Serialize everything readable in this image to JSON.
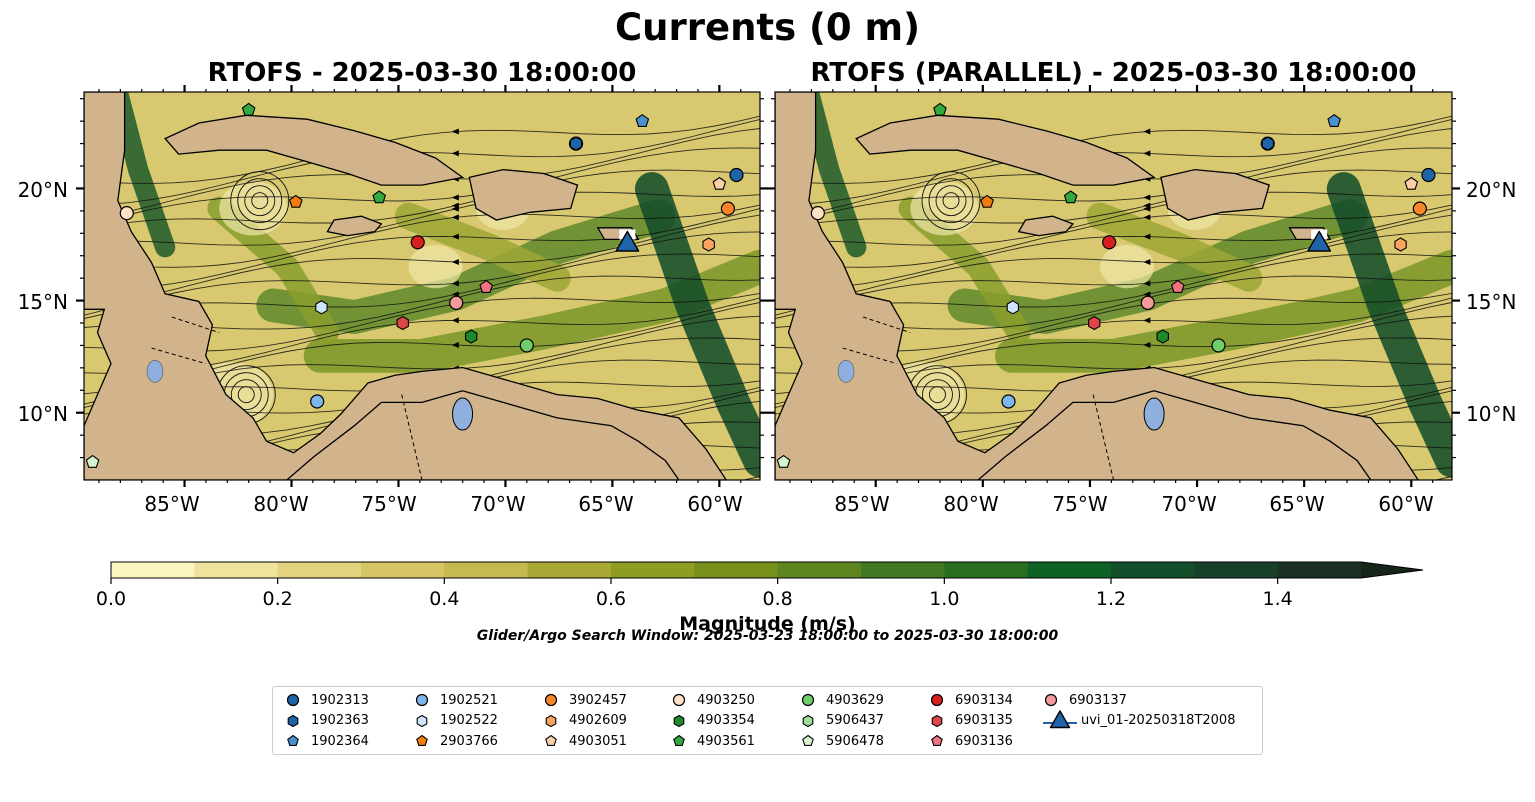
{
  "title": "Currents (0 m)",
  "panels": [
    {
      "title": "RTOFS - 2025-03-30 18:00:00"
    },
    {
      "title": "RTOFS (PARALLEL) - 2025-03-30 18:00:00"
    }
  ],
  "axes": {
    "lat_ticks": [
      "10°N",
      "15°N",
      "20°N"
    ],
    "lon_ticks": [
      "85°W",
      "80°W",
      "75°W",
      "70°W",
      "65°W",
      "60°W"
    ],
    "lat_range": [
      7.0,
      24.3
    ],
    "lon_range": [
      -89.7,
      -58.1
    ]
  },
  "colorbar": {
    "label": "Magnitude (m/s)",
    "ticks": [
      "0.0",
      "0.2",
      "0.4",
      "0.6",
      "0.8",
      "1.0",
      "1.2",
      "1.4"
    ],
    "range": [
      0.0,
      1.5
    ],
    "extend": "max",
    "colors": [
      "#fbf5c0",
      "#efe29c",
      "#e3d27e",
      "#d5c566",
      "#c6b94f",
      "#a8a834",
      "#8f9c22",
      "#77901b",
      "#5f8520",
      "#427a23",
      "#287020",
      "#0e6226",
      "#11502a",
      "#17402b",
      "#1b3024",
      "#15251a"
    ]
  },
  "search_window": "Glider/Argo Search Window: 2025-03-23 18:00:00 to 2025-03-30 18:00:00",
  "legend": {
    "location": "below",
    "items": [
      {
        "label": "1902313",
        "marker": "circle",
        "color": "#1f63a8"
      },
      {
        "label": "1902363",
        "marker": "hexagon",
        "color": "#1f63a8"
      },
      {
        "label": "1902364",
        "marker": "pentagon",
        "color": "#4a90d0"
      },
      {
        "label": "1902521",
        "marker": "circle",
        "color": "#7db7ea"
      },
      {
        "label": "1902522",
        "marker": "hexagon",
        "color": "#cde6fb"
      },
      {
        "label": "2903766",
        "marker": "pentagon",
        "color": "#f07d10"
      },
      {
        "label": "3902457",
        "marker": "circle",
        "color": "#f7862a"
      },
      {
        "label": "4902609",
        "marker": "hexagon",
        "color": "#f9a560"
      },
      {
        "label": "4903051",
        "marker": "pentagon",
        "color": "#fcd0a8"
      },
      {
        "label": "4903250",
        "marker": "circle",
        "color": "#fde2c8"
      },
      {
        "label": "4903354",
        "marker": "hexagon",
        "color": "#1e8a2a"
      },
      {
        "label": "4903561",
        "marker": "pentagon",
        "color": "#33a83e"
      },
      {
        "label": "4903629",
        "marker": "circle",
        "color": "#6fce6a"
      },
      {
        "label": "5906437",
        "marker": "hexagon",
        "color": "#9ddf94"
      },
      {
        "label": "5906478",
        "marker": "pentagon",
        "color": "#d6f5cf"
      },
      {
        "label": "6903134",
        "marker": "circle",
        "color": "#d61f1f"
      },
      {
        "label": "6903135",
        "marker": "hexagon",
        "color": "#e0454a"
      },
      {
        "label": "6903136",
        "marker": "pentagon",
        "color": "#f07480"
      },
      {
        "label": "6903137",
        "marker": "circle",
        "color": "#f59a9a"
      },
      {
        "label": "uvi_01-20250318T2008",
        "marker": "triangle",
        "color": "#1f63a8"
      }
    ]
  },
  "floats": [
    {
      "id": "1902313",
      "lon": -66.7,
      "lat": 22.0
    },
    {
      "id": "1902313",
      "lon": -59.2,
      "lat": 20.6
    },
    {
      "id": "1902363",
      "lon": -66.7,
      "lat": 22.0
    },
    {
      "id": "1902364",
      "lon": -63.6,
      "lat": 23.0
    },
    {
      "id": "1902521",
      "lon": -78.8,
      "lat": 10.5
    },
    {
      "id": "1902522",
      "lon": -78.6,
      "lat": 14.7
    },
    {
      "id": "2903766",
      "lon": -79.8,
      "lat": 19.4
    },
    {
      "id": "3902457",
      "lon": -59.6,
      "lat": 19.1
    },
    {
      "id": "4902609",
      "lon": -60.5,
      "lat": 17.5
    },
    {
      "id": "4903051",
      "lon": -60.0,
      "lat": 20.2
    },
    {
      "id": "4903250",
      "lon": -87.7,
      "lat": 18.9
    },
    {
      "id": "4903354",
      "lon": -71.6,
      "lat": 13.4
    },
    {
      "id": "4903561",
      "lon": -82.0,
      "lat": 23.5
    },
    {
      "id": "4903561",
      "lon": -75.9,
      "lat": 19.6
    },
    {
      "id": "4903629",
      "lon": -69.0,
      "lat": 13.0
    },
    {
      "id": "5906478",
      "lon": -89.3,
      "lat": 7.8
    },
    {
      "id": "6903134",
      "lon": -74.1,
      "lat": 17.6
    },
    {
      "id": "6903135",
      "lon": -74.8,
      "lat": 14.0
    },
    {
      "id": "6903136",
      "lon": -70.9,
      "lat": 15.6
    },
    {
      "id": "6903137",
      "lon": -72.3,
      "lat": 14.9
    }
  ],
  "glider": {
    "id": "uvi_01-20250318T2008",
    "lon": -64.3,
    "lat": 17.5
  }
}
